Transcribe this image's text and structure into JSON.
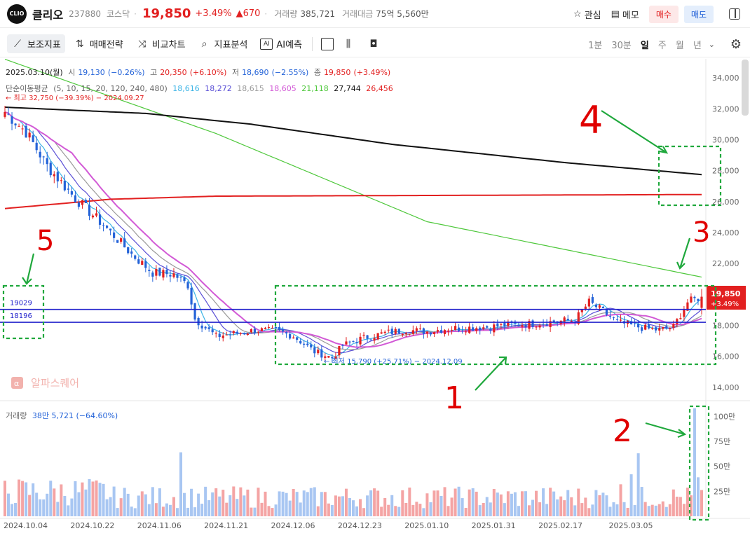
{
  "header": {
    "logo_text": "CLIO",
    "name": "클리오",
    "code": "237880",
    "market": "코스닥",
    "sep": "·",
    "price": "19,850",
    "change_rate": "+3.49%",
    "change_amount": "▲670",
    "volume_label": "거래량",
    "volume_value": "385,721",
    "value_label": "거래대금",
    "value_value": "75억 5,560만",
    "watch_label": "관심",
    "memo_label": "메모",
    "buy_label": "매수",
    "sell_label": "매도",
    "up_color": "#e22020",
    "down_color": "#2463d8"
  },
  "toolbar": {
    "indicator_label": "보조지표",
    "strategy_label": "매매전략",
    "compare_label": "비교차트",
    "analysis_label": "지표분석",
    "ai_icon_text": "AI",
    "ai_label": "AI예측",
    "periods": [
      "1분",
      "30분",
      "일",
      "주",
      "월",
      "년"
    ],
    "active_period": "일"
  },
  "legend": {
    "date": "2025.03.10(월)",
    "open_label": "시",
    "open": "19,130",
    "open_rate": "(−0.26%)",
    "high_label": "고",
    "high": "20,350",
    "high_rate": "(+6.10%)",
    "low_label": "저",
    "low": "18,690",
    "low_rate": "(−2.55%)",
    "close_label": "종",
    "close": "19,850",
    "close_rate": "(+3.49%)",
    "ma_label": "단순이동평균",
    "ma_params": "(5, 10, 15, 20, 120, 240, 480)",
    "ma_values": [
      {
        "value": "18,616",
        "color": "#3cb4e6"
      },
      {
        "value": "18,272",
        "color": "#5a4fd6"
      },
      {
        "value": "18,615",
        "color": "#9a9a9a"
      },
      {
        "value": "18,605",
        "color": "#d25ad6"
      },
      {
        "value": "21,118",
        "color": "#4fc83c"
      },
      {
        "value": "27,744",
        "color": "#111111"
      },
      {
        "value": "26,456",
        "color": "#e22020"
      }
    ],
    "high_note": "← 최고 32,750 (−39.39%) − 2024.09.27",
    "low_note": "← 최저 15,790 (+25.71%) − 2024.12.09",
    "watermark": "알파스퀘어"
  },
  "volume_legend": {
    "label": "거래량",
    "ma_text": "38만 5,721 (−64.60%)"
  },
  "chart_data": {
    "type": "candlestick",
    "price_axis": {
      "range": [
        13400,
        35000
      ],
      "ticks": [
        "34,000",
        "32,000",
        "30,000",
        "28,000",
        "26,000",
        "24,000",
        "22,000",
        "20,000",
        "18,000",
        "16,000",
        "14,000"
      ]
    },
    "volume_axis": {
      "range": [
        0,
        1100000
      ],
      "ticks": [
        "100만",
        "75만",
        "50만",
        "25만"
      ]
    },
    "x_tick_labels": [
      "2024.10.04",
      "2024.10.22",
      "2024.11.06",
      "2024.11.21",
      "2024.12.06",
      "2024.12.23",
      "2025.01.10",
      "2025.01.31",
      "2025.02.17",
      "2025.03.05"
    ],
    "current_price_tag": {
      "price": "19,850",
      "rate": "+3.49%"
    },
    "horizontal_lines": [
      {
        "label": "19029",
        "value": 19029,
        "color": "#2222cc"
      },
      {
        "label": "18196",
        "value": 18196,
        "color": "#2222cc"
      }
    ],
    "annotations": [
      {
        "label": "1",
        "color": "#e00000"
      },
      {
        "label": "2",
        "color": "#e00000"
      },
      {
        "label": "3",
        "color": "#e00000"
      },
      {
        "label": "4",
        "color": "#e00000"
      },
      {
        "label": "5",
        "color": "#e00000"
      }
    ],
    "price_anchors": [
      [
        0,
        31800
      ],
      [
        6,
        30500
      ],
      [
        12,
        28300
      ],
      [
        20,
        26200
      ],
      [
        28,
        24500
      ],
      [
        36,
        22600
      ],
      [
        42,
        21400
      ],
      [
        48,
        21300
      ],
      [
        52,
        20600
      ],
      [
        54,
        18400
      ],
      [
        60,
        17300
      ],
      [
        66,
        17500
      ],
      [
        72,
        17700
      ],
      [
        78,
        17600
      ],
      [
        82,
        17300
      ],
      [
        88,
        16300
      ],
      [
        93,
        15900
      ],
      [
        96,
        16700
      ],
      [
        102,
        17200
      ],
      [
        108,
        17500
      ],
      [
        114,
        17700
      ],
      [
        120,
        17600
      ],
      [
        126,
        17800
      ],
      [
        132,
        17850
      ],
      [
        138,
        17900
      ],
      [
        144,
        18050
      ],
      [
        150,
        18100
      ],
      [
        156,
        18250
      ],
      [
        162,
        18350
      ],
      [
        166,
        19500
      ],
      [
        170,
        18900
      ],
      [
        174,
        18200
      ],
      [
        178,
        18000
      ],
      [
        182,
        17800
      ],
      [
        186,
        17700
      ],
      [
        190,
        17900
      ],
      [
        194,
        19500
      ],
      [
        198,
        19850
      ]
    ],
    "ma_anchors": [
      {
        "name": "MA120",
        "color": "#4fc83c",
        "points": [
          [
            0,
            35200
          ],
          [
            60,
            30400
          ],
          [
            120,
            24700
          ],
          [
            198,
            21118
          ]
        ]
      },
      {
        "name": "MA240",
        "color": "#111111",
        "points": [
          [
            0,
            32100
          ],
          [
            40,
            31700
          ],
          [
            70,
            31000
          ],
          [
            110,
            29700
          ],
          [
            160,
            28500
          ],
          [
            198,
            27744
          ]
        ]
      },
      {
        "name": "MA480",
        "color": "#e22020",
        "points": [
          [
            0,
            25550
          ],
          [
            30,
            26150
          ],
          [
            60,
            26350
          ],
          [
            198,
            26456
          ]
        ]
      }
    ],
    "volume_scale": 1000000
  }
}
